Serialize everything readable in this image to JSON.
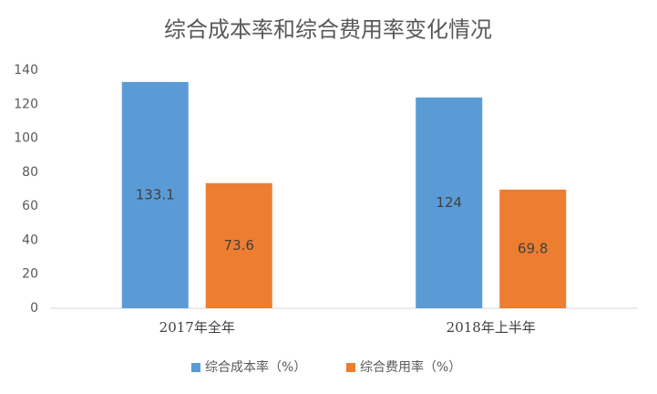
{
  "chart_data": {
    "type": "bar",
    "title": "综合成本率和综合费用率变化情况",
    "categories": [
      "2017年全年",
      "2018年上半年"
    ],
    "series": [
      {
        "name": "综合成本率（%）",
        "color": "#5b9bd5",
        "values": [
          133.1,
          124
        ]
      },
      {
        "name": "综合费用率（%）",
        "color": "#ed7d31",
        "values": [
          73.6,
          69.8
        ]
      }
    ],
    "ylim": [
      0,
      140
    ],
    "yticks": [
      0,
      20,
      40,
      60,
      80,
      100,
      120,
      140
    ],
    "grid": false,
    "legend": "bottom",
    "data_labels": true
  }
}
